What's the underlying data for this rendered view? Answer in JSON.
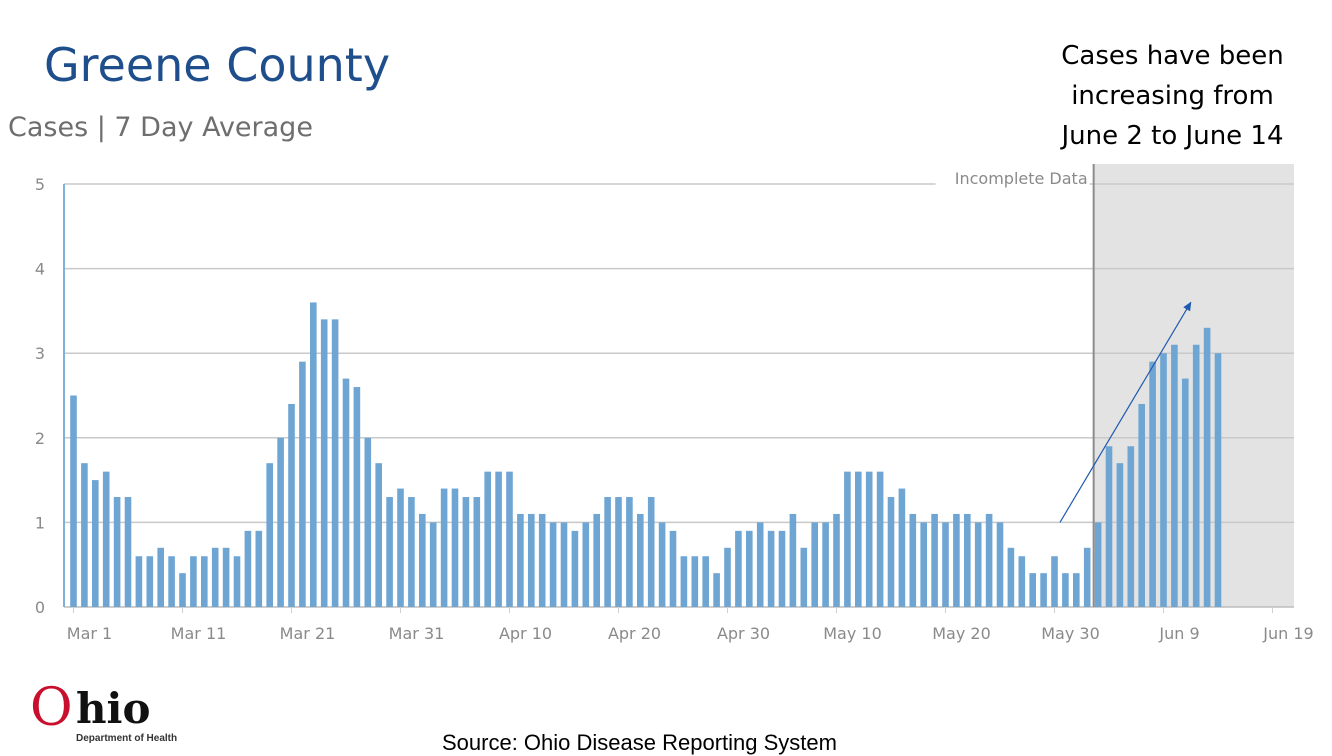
{
  "title": "Greene County",
  "subtitle": "Cases | 7 Day Average",
  "note_lines": [
    "Cases have been",
    "increasing from",
    "June 2 to June 14"
  ],
  "logo": {
    "o": "O",
    "text": "hio",
    "sub": "Department of Health"
  },
  "source": "Source: Ohio Disease Reporting System",
  "colors": {
    "bar": "#6fa5d3",
    "title": "#1f4e8c",
    "shade": "#e3e3e3",
    "arrow": "#1f5ab0"
  },
  "chart_data": {
    "type": "bar",
    "title": "Cases | 7 Day Average",
    "xlabel": "",
    "ylabel": "",
    "ylim": [
      0,
      5
    ],
    "y_ticks": [
      0,
      1,
      2,
      3,
      4,
      5
    ],
    "x_tick_labels": [
      "Mar 1",
      "Mar 11",
      "Mar 21",
      "Mar 31",
      "Apr 10",
      "Apr 20",
      "Apr 30",
      "May 10",
      "May 20",
      "May 30",
      "Jun 9",
      "Jun 19"
    ],
    "x_tick_day_index": [
      0,
      10,
      20,
      30,
      40,
      50,
      60,
      70,
      80,
      90,
      100,
      110
    ],
    "incomplete_label": "Incomplete Data",
    "incomplete_start_day_index": 94,
    "arrow": {
      "from": {
        "day": 90.5,
        "value": 1.0
      },
      "to": {
        "day": 102.5,
        "value": 3.6
      }
    },
    "series": [
      {
        "name": "Cases 7 Day Average",
        "start_day_index": 0,
        "values": [
          2.5,
          1.7,
          1.5,
          1.6,
          1.3,
          1.3,
          0.6,
          0.6,
          0.7,
          0.6,
          0.4,
          0.6,
          0.6,
          0.7,
          0.7,
          0.6,
          0.9,
          0.9,
          1.7,
          2.0,
          2.4,
          2.9,
          3.6,
          3.4,
          3.4,
          2.7,
          2.6,
          2.0,
          1.7,
          1.3,
          1.4,
          1.3,
          1.1,
          1.0,
          1.4,
          1.4,
          1.3,
          1.3,
          1.6,
          1.6,
          1.6,
          1.1,
          1.1,
          1.1,
          1.0,
          1.0,
          0.9,
          1.0,
          1.1,
          1.3,
          1.3,
          1.3,
          1.1,
          1.3,
          1.0,
          0.9,
          0.6,
          0.6,
          0.6,
          0.4,
          0.7,
          0.9,
          0.9,
          1.0,
          0.9,
          0.9,
          1.1,
          0.7,
          1.0,
          1.0,
          1.1,
          1.6,
          1.6,
          1.6,
          1.6,
          1.3,
          1.4,
          1.1,
          1.0,
          1.1,
          1.0,
          1.1,
          1.1,
          1.0,
          1.1,
          1.0,
          0.7,
          0.6,
          0.4,
          0.4,
          0.6,
          0.4,
          0.4,
          0.7,
          1.0,
          1.9,
          1.7,
          1.9,
          2.4,
          2.9,
          3.0,
          3.1,
          2.7,
          3.1,
          3.3,
          3.0
        ]
      }
    ]
  }
}
